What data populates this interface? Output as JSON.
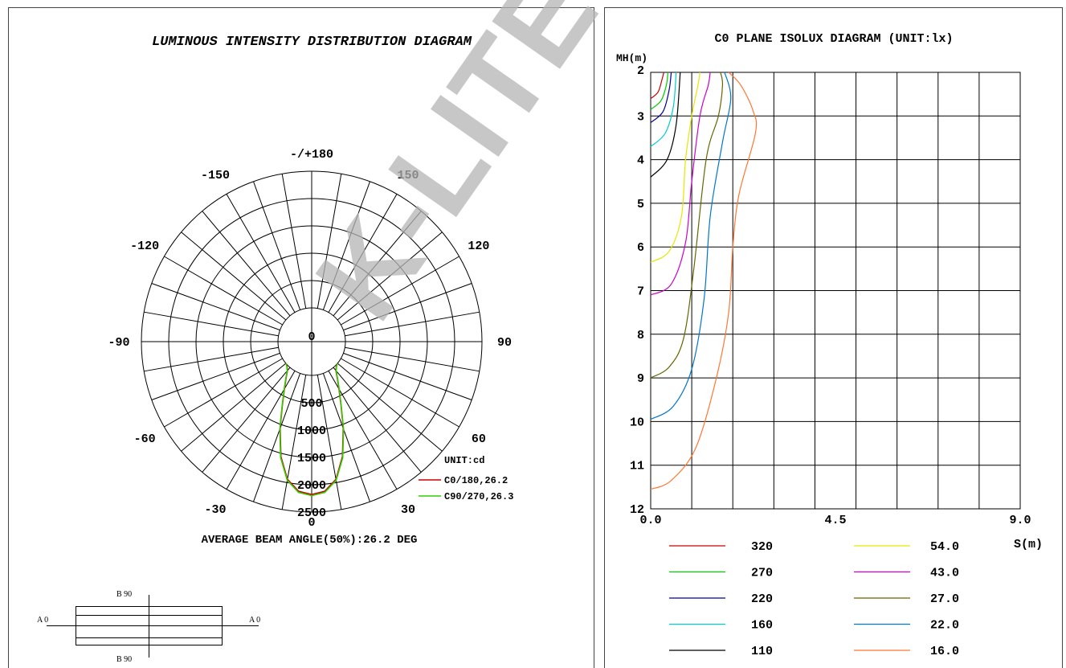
{
  "watermark": "K-LITE",
  "chart_data": [
    {
      "type": "polar",
      "title": "LUMINOUS INTENSITY DISTRIBUTION DIAGRAM",
      "unit_label": "UNIT:cd",
      "angle_labels": [
        "-/+180",
        "150",
        "120",
        "90",
        "60",
        "30",
        "0",
        "-30",
        "-60",
        "-90",
        "-120",
        "-150"
      ],
      "angle_values": [
        180,
        150,
        120,
        90,
        60,
        30,
        0,
        -30,
        -60,
        -90,
        -120,
        -150
      ],
      "radial_labels": [
        "0",
        "500",
        "1000",
        "1500",
        "2000",
        "2500"
      ],
      "radial_values": [
        0,
        500,
        1000,
        1500,
        2000,
        2500
      ],
      "rmax": 2500,
      "series": [
        {
          "name": "C0/180,26.2",
          "color": "#cc0000",
          "points": [
            [
              0,
              2180
            ],
            [
              5,
              2130
            ],
            [
              10,
              1940
            ],
            [
              15,
              1560
            ],
            [
              20,
              1070
            ],
            [
              25,
              650
            ],
            [
              30,
              380
            ],
            [
              35,
              200
            ],
            [
              40,
              70
            ],
            [
              45,
              20
            ],
            [
              50,
              0
            ]
          ]
        },
        {
          "name": "C90/270,26.3",
          "color": "#33cc00",
          "points": [
            [
              0,
              2200
            ],
            [
              5,
              2150
            ],
            [
              10,
              1960
            ],
            [
              15,
              1580
            ],
            [
              20,
              1090
            ],
            [
              25,
              660
            ],
            [
              30,
              390
            ],
            [
              35,
              210
            ],
            [
              40,
              80
            ],
            [
              45,
              25
            ],
            [
              50,
              0
            ]
          ]
        }
      ],
      "footer": "AVERAGE BEAM ANGLE(50%):26.2 DEG",
      "orientation": {
        "b_top": "B 90",
        "b_bottom": "B 90",
        "a_left": "A 0",
        "a_right": "A 0"
      }
    },
    {
      "type": "line",
      "title": "C0 PLANE ISOLUX DIAGRAM (UNIT:lx)",
      "ylabel": "MH(m)",
      "xlabel": "S(m)",
      "xlim": [
        0,
        9
      ],
      "ylim": [
        2,
        12
      ],
      "x_tick_labels": [
        "0.0",
        "4.5",
        "9.0"
      ],
      "x_tick_values": [
        0,
        4.5,
        9
      ],
      "y_tick_labels": [
        "2",
        "3",
        "4",
        "5",
        "6",
        "7",
        "8",
        "9",
        "10",
        "11",
        "12"
      ],
      "y_tick_values": [
        2,
        3,
        4,
        5,
        6,
        7,
        8,
        9,
        10,
        11,
        12
      ],
      "series": [
        {
          "name": "320",
          "color": "#cc0000",
          "points": [
            [
              0,
              2.6
            ],
            [
              0.18,
              2.45
            ],
            [
              0.28,
              2.15
            ],
            [
              0.32,
              2.0
            ]
          ]
        },
        {
          "name": "270",
          "color": "#00cc00",
          "points": [
            [
              0,
              2.85
            ],
            [
              0.25,
              2.65
            ],
            [
              0.38,
              2.3
            ],
            [
              0.42,
              2.0
            ]
          ]
        },
        {
          "name": "220",
          "color": "#000099",
          "points": [
            [
              0,
              3.15
            ],
            [
              0.3,
              2.9
            ],
            [
              0.45,
              2.4
            ],
            [
              0.5,
              2.0
            ]
          ]
        },
        {
          "name": "160",
          "color": "#00cccc",
          "points": [
            [
              0,
              3.7
            ],
            [
              0.35,
              3.4
            ],
            [
              0.55,
              2.8
            ],
            [
              0.62,
              2.0
            ]
          ]
        },
        {
          "name": "110",
          "color": "#000000",
          "points": [
            [
              0,
              4.4
            ],
            [
              0.4,
              4.0
            ],
            [
              0.62,
              3.2
            ],
            [
              0.72,
              2.0
            ]
          ]
        },
        {
          "name": "54.0",
          "color": "#e6e600",
          "points": [
            [
              0,
              6.35
            ],
            [
              0.45,
              6.1
            ],
            [
              0.75,
              5.3
            ],
            [
              0.85,
              4.0
            ],
            [
              1.0,
              3.0
            ],
            [
              1.15,
              2.3
            ],
            [
              1.2,
              2.0
            ]
          ]
        },
        {
          "name": "43.0",
          "color": "#cc00cc",
          "points": [
            [
              0,
              7.1
            ],
            [
              0.5,
              6.85
            ],
            [
              0.85,
              5.9
            ],
            [
              1.0,
              4.5
            ],
            [
              1.2,
              3.0
            ],
            [
              1.4,
              2.3
            ],
            [
              1.45,
              2.0
            ]
          ]
        },
        {
          "name": "27.0",
          "color": "#666600",
          "points": [
            [
              0,
              9.0
            ],
            [
              0.45,
              8.75
            ],
            [
              0.8,
              8.1
            ],
            [
              1.05,
              6.5
            ],
            [
              1.35,
              4.0
            ],
            [
              1.65,
              3.0
            ],
            [
              1.75,
              2.3
            ],
            [
              1.7,
              2.0
            ]
          ]
        },
        {
          "name": "22.0",
          "color": "#0077cc",
          "points": [
            [
              0,
              9.95
            ],
            [
              0.55,
              9.65
            ],
            [
              1.0,
              8.8
            ],
            [
              1.3,
              7.2
            ],
            [
              1.45,
              5.3
            ],
            [
              1.75,
              3.6
            ],
            [
              1.95,
              2.6
            ],
            [
              1.8,
              2.0
            ]
          ]
        },
        {
          "name": "16.0",
          "color": "#ff7733",
          "points": [
            [
              0,
              11.55
            ],
            [
              0.5,
              11.35
            ],
            [
              1.1,
              10.6
            ],
            [
              1.6,
              9.0
            ],
            [
              1.9,
              7.5
            ],
            [
              2.0,
              6.0
            ],
            [
              2.15,
              4.8
            ],
            [
              2.55,
              3.4
            ],
            [
              2.5,
              2.9
            ],
            [
              2.2,
              2.3
            ],
            [
              1.9,
              2.0
            ]
          ]
        }
      ],
      "legend": [
        "320",
        "270",
        "220",
        "160",
        "110",
        "54.0",
        "43.0",
        "27.0",
        "22.0",
        "16.0"
      ]
    }
  ]
}
